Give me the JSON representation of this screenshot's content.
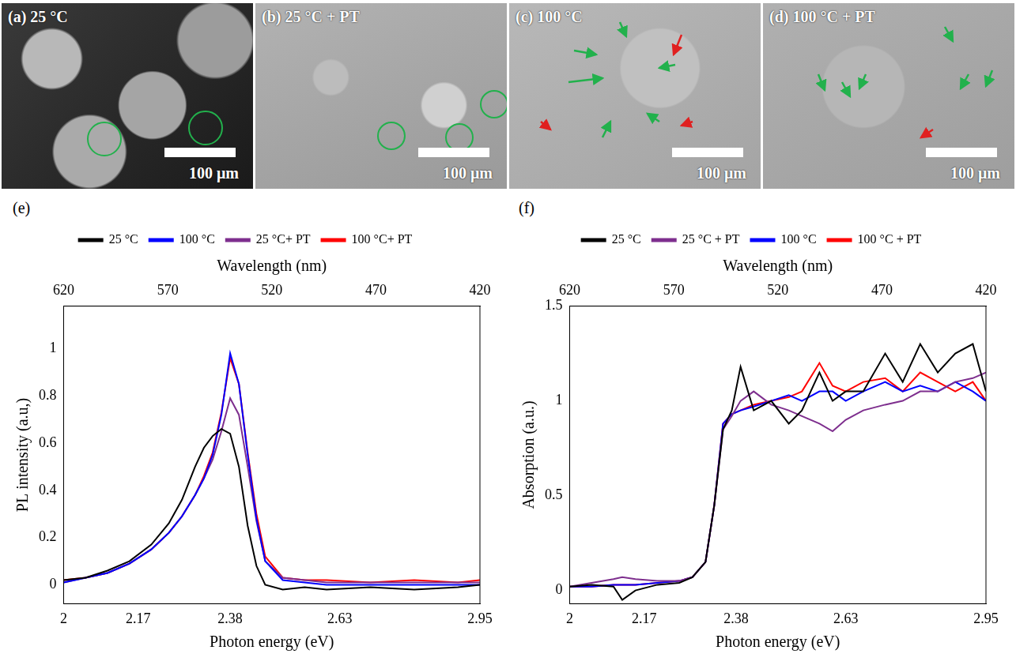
{
  "images": [
    {
      "label": "(a) 25 °C",
      "scale_bar": "100 μm"
    },
    {
      "label": "(b) 25 °C + PT",
      "scale_bar": "100 μm"
    },
    {
      "label": "(c) 100 °C",
      "scale_bar": "100 μm"
    },
    {
      "label": "(d) 100 °C + PT",
      "scale_bar": "100 μm"
    }
  ],
  "chart_data": [
    {
      "type": "line",
      "panel": "(e)",
      "xlabel": "Photon energy (eV)",
      "x2label": "Wavelength (nm)",
      "ylabel": "PL intensity (a.u,)",
      "x": [
        2.0,
        2.05,
        2.1,
        2.15,
        2.2,
        2.24,
        2.27,
        2.3,
        2.32,
        2.34,
        2.36,
        2.38,
        2.4,
        2.42,
        2.44,
        2.46,
        2.5,
        2.55,
        2.6,
        2.7,
        2.8,
        2.9,
        2.95
      ],
      "xlim": [
        2,
        2.95
      ],
      "xticks": [
        2,
        2.17,
        2.38,
        2.63,
        2.95
      ],
      "x2lim": [
        620,
        420
      ],
      "x2ticks": [
        620,
        570,
        520,
        470,
        420
      ],
      "ylim": [
        -0.08,
        1.18
      ],
      "yticks": [
        0,
        0.2,
        0.4,
        0.6,
        0.8,
        1
      ],
      "grid": false,
      "legend": "top",
      "series": [
        {
          "name": "25 °C",
          "color": "#000000",
          "values": [
            0.02,
            0.03,
            0.06,
            0.1,
            0.17,
            0.26,
            0.36,
            0.5,
            0.58,
            0.63,
            0.66,
            0.64,
            0.5,
            0.25,
            0.08,
            0.0,
            -0.02,
            -0.01,
            -0.02,
            -0.01,
            -0.02,
            -0.01,
            0.0
          ]
        },
        {
          "name": "100 °C",
          "color": "#0000ff",
          "values": [
            0.01,
            0.03,
            0.05,
            0.09,
            0.15,
            0.22,
            0.29,
            0.38,
            0.45,
            0.55,
            0.72,
            0.98,
            0.85,
            0.55,
            0.28,
            0.1,
            0.02,
            0.01,
            0.0,
            0.0,
            0.0,
            0.0,
            0.0
          ]
        },
        {
          "name": "25 °C+ PT",
          "color": "#7e2f8e",
          "values": [
            0.01,
            0.03,
            0.05,
            0.09,
            0.15,
            0.22,
            0.29,
            0.38,
            0.45,
            0.53,
            0.65,
            0.79,
            0.72,
            0.5,
            0.27,
            0.1,
            0.03,
            0.02,
            0.01,
            0.01,
            0.01,
            0.01,
            0.01
          ]
        },
        {
          "name": "100 °C+ PT",
          "color": "#ff0000",
          "values": [
            0.02,
            0.03,
            0.05,
            0.09,
            0.15,
            0.22,
            0.29,
            0.38,
            0.46,
            0.56,
            0.73,
            0.96,
            0.85,
            0.56,
            0.3,
            0.12,
            0.03,
            0.02,
            0.02,
            0.01,
            0.02,
            0.01,
            0.02
          ]
        }
      ]
    },
    {
      "type": "line",
      "panel": "(f)",
      "xlabel": "Photon energy (eV)",
      "x2label": "Wavelength (nm)",
      "ylabel": "Absorption (a.u.)",
      "x": [
        2.0,
        2.05,
        2.1,
        2.12,
        2.15,
        2.2,
        2.25,
        2.28,
        2.31,
        2.33,
        2.35,
        2.37,
        2.39,
        2.42,
        2.46,
        2.5,
        2.53,
        2.57,
        2.6,
        2.63,
        2.67,
        2.72,
        2.76,
        2.8,
        2.84,
        2.88,
        2.92,
        2.95
      ],
      "xlim": [
        2,
        2.95
      ],
      "xticks": [
        2,
        2.17,
        2.38,
        2.63,
        2.95
      ],
      "x2lim": [
        620,
        420
      ],
      "x2ticks": [
        620,
        570,
        520,
        470,
        420
      ],
      "ylim": [
        -0.07,
        1.5
      ],
      "yticks": [
        0,
        0.5,
        1,
        1.5
      ],
      "grid": false,
      "legend": "top",
      "series": [
        {
          "name": "25 °C",
          "color": "#000000",
          "values": [
            0.02,
            0.03,
            0.02,
            -0.05,
            0.0,
            0.03,
            0.04,
            0.07,
            0.15,
            0.45,
            0.85,
            0.95,
            1.18,
            0.95,
            1.0,
            0.88,
            0.95,
            1.15,
            1.0,
            1.05,
            1.05,
            1.25,
            1.1,
            1.3,
            1.15,
            1.25,
            1.3,
            1.05
          ]
        },
        {
          "name": "25 °C + PT",
          "color": "#7e2f8e",
          "values": [
            0.02,
            0.04,
            0.06,
            0.07,
            0.06,
            0.05,
            0.05,
            0.07,
            0.15,
            0.45,
            0.85,
            0.92,
            1.0,
            1.05,
            0.98,
            0.95,
            0.92,
            0.88,
            0.84,
            0.9,
            0.95,
            0.98,
            1.0,
            1.05,
            1.05,
            1.1,
            1.12,
            1.15
          ]
        },
        {
          "name": "100 °C",
          "color": "#0000ff",
          "values": [
            0.02,
            0.02,
            0.03,
            0.03,
            0.03,
            0.04,
            0.05,
            0.07,
            0.15,
            0.45,
            0.88,
            0.93,
            0.95,
            0.97,
            1.0,
            1.03,
            1.0,
            1.05,
            1.05,
            1.0,
            1.05,
            1.1,
            1.05,
            1.08,
            1.05,
            1.1,
            1.05,
            1.0
          ]
        },
        {
          "name": "100 °C + PT",
          "color": "#ff0000",
          "values": [
            0.02,
            0.02,
            0.03,
            0.03,
            0.03,
            0.04,
            0.05,
            0.07,
            0.15,
            0.45,
            0.88,
            0.93,
            0.95,
            0.98,
            1.0,
            1.02,
            1.05,
            1.2,
            1.08,
            1.05,
            1.1,
            1.12,
            1.05,
            1.15,
            1.1,
            1.05,
            1.1,
            1.0
          ]
        }
      ]
    }
  ]
}
